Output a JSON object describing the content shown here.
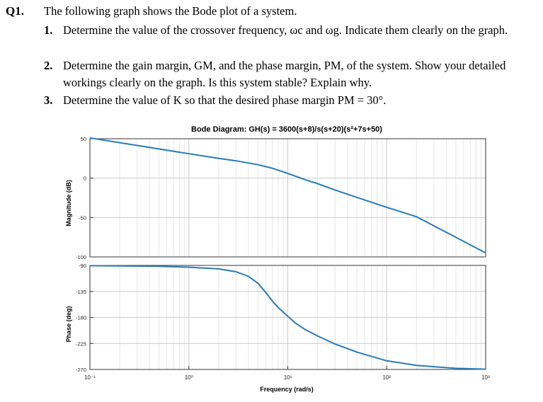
{
  "question": {
    "number": "Q1.",
    "intro": "The following graph shows the Bode plot of a system.",
    "items": [
      {
        "num": "1.",
        "text": "Determine the value of the crossover frequency, ωc and ωg. Indicate them clearly on the graph."
      },
      {
        "num": "2.",
        "text": "Determine the gain margin, GM, and the phase margin, PM, of the system. Show your detailed workings clearly on the graph. Is this system stable? Explain why."
      },
      {
        "num": "3.",
        "text": "Determine the value of K so that the desired phase margin PM = 30°."
      }
    ]
  },
  "chart_data": [
    {
      "type": "line",
      "title": "Bode Diagram: GH(s) = 3600(s+8)/s(s+20)(s²+7s+50)",
      "xlabel": "",
      "ylabel": "Magnitude (dB)",
      "xscale": "log",
      "xlim": [
        0.1,
        1000
      ],
      "ylim": [
        -100,
        50
      ],
      "yticks": [
        "50",
        "0",
        "-50",
        "-100"
      ],
      "grid": true,
      "series": [
        {
          "color": "#2a7ab8",
          "x": [
            0.1,
            0.3,
            1,
            2,
            3,
            5,
            7,
            10,
            15,
            20,
            30,
            50,
            100,
            200,
            500,
            1000
          ],
          "y": [
            51,
            41.5,
            31,
            25,
            22,
            17,
            12.5,
            6,
            -2,
            -7,
            -15,
            -24.5,
            -37,
            -49,
            -75,
            -95
          ]
        }
      ]
    },
    {
      "type": "line",
      "title": "",
      "xlabel": "Frequency (rad/s)",
      "ylabel": "Phase (deg)",
      "xscale": "log",
      "xlim": [
        0.1,
        1000
      ],
      "ylim": [
        -270,
        -90
      ],
      "yticks": [
        "-90",
        "-135",
        "-180",
        "-225",
        "-270"
      ],
      "xticks": [
        "10⁻¹",
        "10⁰",
        "10¹",
        "10²",
        "10³"
      ],
      "grid": true,
      "series": [
        {
          "color": "#2a7ab8",
          "x": [
            0.1,
            0.5,
            1,
            2,
            3,
            4,
            5,
            6,
            7,
            8,
            10,
            12,
            15,
            20,
            30,
            50,
            100,
            200,
            500,
            1000
          ],
          "y": [
            -90.5,
            -91.5,
            -93,
            -96,
            -101,
            -109,
            -121,
            -137,
            -152,
            -163,
            -178,
            -190,
            -201,
            -212,
            -226,
            -240,
            -255,
            -263,
            -268,
            -269.5
          ]
        }
      ]
    }
  ]
}
